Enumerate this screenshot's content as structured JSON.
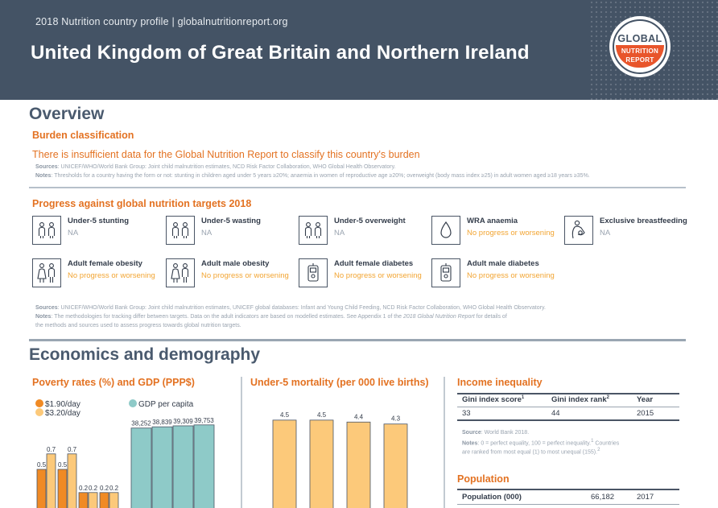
{
  "header": {
    "profile_line": "2018 Nutrition country profile  |  globalnutritionreport.org",
    "country": "United Kingdom of Great Britain and Northern Ireland",
    "logo": {
      "line1": "GLOBAL",
      "line2": "NUTRITION",
      "line3": "REPORT"
    }
  },
  "overview": {
    "title": "Overview",
    "burden": {
      "heading": "Burden classification",
      "message": "There is insufficient data for the Global Nutrition Report to classify this country's burden",
      "sources_label": "Sources",
      "sources_text": ": UNICEF/WHO/World Bank Group: Joint child malnutrition estimates, NCD Risk Factor Collaboration, WHO Global Health Observatory.",
      "notes_label": "Notes",
      "notes_text": ": Thresholds for a country having the form or not: stunting in children aged under 5 years ≥20%; anaemia in women of reproductive age ≥20%; overweight (body mass index ≥25) in adult women aged ≥18 years ≥35%."
    },
    "progress": {
      "heading": "Progress against global nutrition targets 2018",
      "targets": [
        {
          "name": "Under-5 stunting",
          "status": "NA",
          "icon": "children-icon"
        },
        {
          "name": "Under-5 wasting",
          "status": "NA",
          "icon": "children-icon"
        },
        {
          "name": "Under-5 overweight",
          "status": "NA",
          "icon": "children-icon"
        },
        {
          "name": "WRA anaemia",
          "status": "No progress or worsening",
          "icon": "blood-drop-icon"
        },
        {
          "name": "Exclusive breastfeeding",
          "status": "NA",
          "icon": "breastfeeding-icon"
        },
        {
          "name": "Adult female obesity",
          "status": "No progress or worsening",
          "icon": "adults-icon"
        },
        {
          "name": "Adult male obesity",
          "status": "No progress or worsening",
          "icon": "adults-icon"
        },
        {
          "name": "Adult female diabetes",
          "status": "No progress or worsening",
          "icon": "glucose-meter-icon"
        },
        {
          "name": "Adult male diabetes",
          "status": "No progress or worsening",
          "icon": "glucose-meter-icon"
        }
      ],
      "sources_label": "Sources",
      "sources_text": ": UNICEF/WHO/World Bank Group: Joint child malnutrition estimates, UNICEF global databases: Infant and Young Child Feeding, NCD Risk Factor Collaboration, WHO Global Health Observatory.",
      "notes_label": "Notes",
      "notes_text": ": The methodologies for tracking differ between targets. Data on the adult indicators are based on modelled estimates. See Appendix 1 of the ",
      "notes_italic": "2018 Global Nutrition Report",
      "notes_text2": " for details of",
      "notes_line3": "the methods and sources used to assess progress towards global nutrition targets."
    }
  },
  "economics": {
    "title": "Economics and demography",
    "poverty": {
      "heading": "Poverty rates (%) and GDP (PPP$)",
      "legend": [
        "$1.90/day",
        "$3.20/day",
        "GDP per capita"
      ]
    },
    "mortality": {
      "heading": "Under-5 mortality (per 000 live births)"
    },
    "income": {
      "heading": "Income inequality",
      "col1": "Gini index score",
      "col1_sup": "1",
      "col2": "Gini index rank",
      "col2_sup": "2",
      "col3": "Year",
      "values": [
        "33",
        "44",
        "2015"
      ],
      "source_label": "Source",
      "source_text": ": World Bank 2018.",
      "notes_label": "Notes",
      "notes_text": ": 0 = perfect equality, 100 = perfect inequality.",
      "notes_sup1": "1",
      "notes_text_b": " Countries",
      "notes_line2": "are ranked from most equal (1) to most unequal (155).",
      "notes_sup2": "2"
    },
    "population": {
      "heading": "Population",
      "label": "Population (000)",
      "value": "66,182",
      "year": "2017"
    }
  },
  "colors": {
    "header_bg": "#445365",
    "accent_orange": "#e37222",
    "bar_190": "#f08a24",
    "bar_320": "#fcc97a",
    "bar_gdp": "#8ecac8",
    "bar_mortality": "#fcc97a",
    "status_bad": "#f2a533",
    "status_na": "#9aa4b0"
  },
  "chart_data": [
    {
      "type": "bar",
      "title": "Poverty rates (%) and GDP (PPP$)",
      "categories": [
        "",
        "",
        "",
        ""
      ],
      "series": [
        {
          "name": "$1.90/day",
          "values": [
            0.5,
            0.5,
            0.2,
            0.2
          ],
          "labels": [
            "0.5",
            "0.5",
            "0.2",
            "0.2"
          ]
        },
        {
          "name": "$3.20/day",
          "values": [
            0.7,
            0.7,
            0.2,
            0.2
          ],
          "labels": [
            "0.7",
            "0.7",
            "0.2",
            "0.2"
          ]
        }
      ],
      "ylim": [
        0,
        1.25
      ]
    },
    {
      "type": "bar",
      "title": "GDP per capita",
      "categories": [
        "",
        "",
        "",
        ""
      ],
      "series": [
        {
          "name": "GDP per capita",
          "values": [
            38252,
            38839,
            39309,
            39753
          ],
          "labels": [
            "38,252",
            "38,839",
            "39,309",
            "39,753"
          ]
        }
      ],
      "ylim": [
        0,
        52000
      ]
    },
    {
      "type": "bar",
      "title": "Under-5 mortality (per 000 live births)",
      "categories": [
        "",
        "",
        "",
        ""
      ],
      "series": [
        {
          "name": "Under-5 mortality",
          "values": [
            4.5,
            4.5,
            4.4,
            4.3
          ],
          "labels": [
            "4.5",
            "4.5",
            "4.4",
            "4.3"
          ]
        }
      ],
      "ylim": [
        0,
        5.4
      ]
    }
  ]
}
